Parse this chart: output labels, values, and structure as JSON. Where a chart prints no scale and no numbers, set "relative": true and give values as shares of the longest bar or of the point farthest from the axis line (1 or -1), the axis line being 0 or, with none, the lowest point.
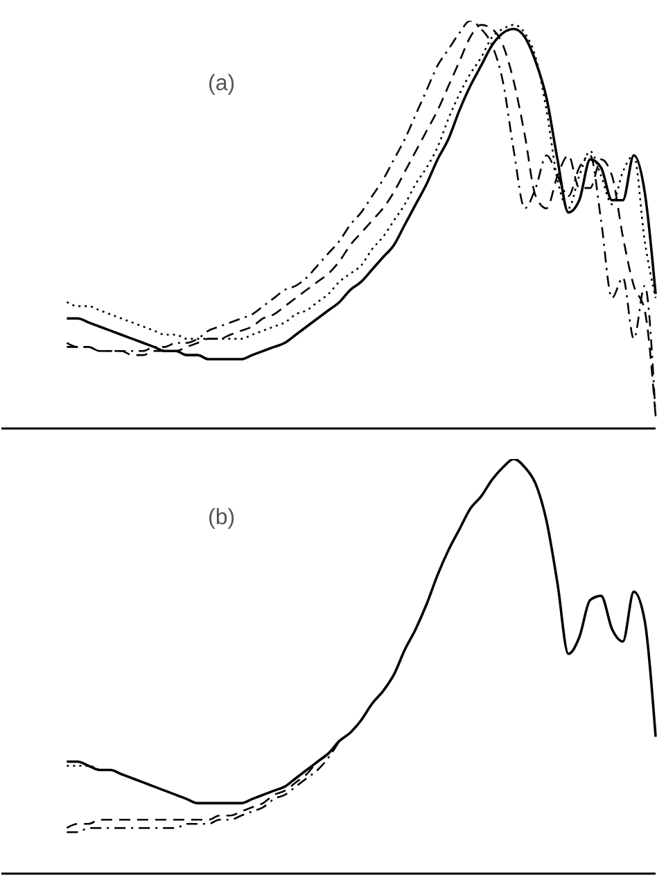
{
  "chart_data": [
    {
      "type": "line",
      "relative": true,
      "annotations": [
        "(a)"
      ],
      "categories": [
        null,
        null,
        null,
        null,
        null,
        null,
        null,
        null,
        null,
        null,
        null,
        null,
        null,
        null,
        null,
        null,
        null,
        null,
        null,
        null,
        null,
        null,
        null,
        null,
        null,
        null,
        null,
        null,
        null,
        null,
        null,
        null,
        null,
        null,
        null,
        null,
        null,
        null,
        null,
        null,
        null,
        null,
        null,
        null,
        null,
        null,
        null,
        null,
        null,
        null,
        null,
        null,
        null,
        null,
        null,
        null,
        null,
        null,
        null,
        null,
        null
      ],
      "series": [
        {
          "color": "#000000",
          "line_style": "solid",
          "values": [
            null,
            null,
            null,
            null,
            null,
            null,
            0.27,
            0.27,
            0.26,
            0.25,
            0.24,
            0.23,
            0.22,
            0.21,
            0.2,
            0.19,
            0.19,
            0.18,
            0.18,
            0.17,
            0.17,
            0.17,
            0.17,
            0.18,
            0.19,
            0.2,
            0.21,
            0.23,
            0.25,
            0.27,
            0.29,
            0.31,
            0.34,
            0.36,
            0.39,
            0.42,
            0.45,
            0.5,
            0.55,
            0.6,
            0.66,
            0.71,
            0.78,
            0.84,
            0.89,
            0.94,
            0.97,
            0.98,
            0.96,
            0.9,
            0.81,
            0.66,
            0.53,
            0.56,
            0.66,
            0.64,
            0.56,
            0.56,
            0.67,
            0.58,
            0.33
          ]
        },
        {
          "color": "#000000",
          "line_style": "dotted",
          "values": [
            null,
            null,
            null,
            null,
            null,
            null,
            0.31,
            0.3,
            0.3,
            0.29,
            0.28,
            0.27,
            0.26,
            0.25,
            0.24,
            0.23,
            0.23,
            0.22,
            0.22,
            0.22,
            0.22,
            0.22,
            0.22,
            0.23,
            0.24,
            0.25,
            0.26,
            0.28,
            0.29,
            0.31,
            0.33,
            0.36,
            0.38,
            0.4,
            0.44,
            0.47,
            0.51,
            0.55,
            0.6,
            0.64,
            0.69,
            0.76,
            0.82,
            0.87,
            0.91,
            0.96,
            0.98,
            0.99,
            0.97,
            0.91,
            0.78,
            0.61,
            0.54,
            0.62,
            0.68,
            0.62,
            0.55,
            0.63,
            0.67,
            0.46,
            0.32
          ]
        },
        {
          "color": "#000000",
          "line_style": "dashed",
          "values": [
            null,
            null,
            null,
            null,
            null,
            null,
            0.21,
            0.2,
            0.2,
            0.19,
            0.19,
            0.19,
            0.18,
            0.18,
            0.19,
            0.19,
            0.19,
            0.2,
            0.21,
            0.22,
            0.22,
            0.23,
            0.24,
            0.25,
            0.27,
            0.28,
            0.3,
            0.32,
            0.34,
            0.36,
            0.38,
            0.41,
            0.45,
            0.48,
            0.51,
            0.54,
            0.58,
            0.63,
            0.68,
            0.73,
            0.78,
            0.84,
            0.9,
            0.96,
            0.99,
            0.98,
            0.94,
            0.85,
            0.72,
            0.57,
            0.54,
            0.62,
            0.67,
            0.59,
            0.59,
            0.66,
            0.62,
            0.47,
            0.35,
            0.29,
            0.03
          ]
        },
        {
          "color": "#000000",
          "line_style": "dashdot",
          "values": [
            null,
            null,
            null,
            null,
            null,
            null,
            0.2,
            0.2,
            0.2,
            0.19,
            0.19,
            0.19,
            0.19,
            0.19,
            0.2,
            0.2,
            0.21,
            0.21,
            0.22,
            0.24,
            0.25,
            0.26,
            0.27,
            0.28,
            0.3,
            0.32,
            0.34,
            0.35,
            0.37,
            0.4,
            0.43,
            0.46,
            0.5,
            0.53,
            0.57,
            0.61,
            0.66,
            0.71,
            0.77,
            0.83,
            0.89,
            0.93,
            0.97,
            1,
            0.98,
            0.94,
            0.85,
            0.68,
            0.54,
            0.59,
            0.67,
            0.62,
            0.57,
            0.64,
            0.67,
            0.51,
            0.32,
            0.37,
            0.22,
            0.35,
            0.03
          ]
        }
      ]
    },
    {
      "type": "line",
      "relative": true,
      "annotations": [
        "(b)"
      ],
      "categories": [
        null,
        null,
        null,
        null,
        null,
        null,
        null,
        null,
        null,
        null,
        null,
        null,
        null,
        null,
        null,
        null,
        null,
        null,
        null,
        null,
        null,
        null,
        null,
        null,
        null,
        null,
        null,
        null,
        null,
        null,
        null,
        null,
        null,
        null,
        null,
        null,
        null,
        null,
        null,
        null,
        null,
        null,
        null,
        null,
        null,
        null,
        null,
        null,
        null,
        null,
        null,
        null,
        null,
        null,
        null,
        null,
        null,
        null,
        null,
        null,
        null
      ],
      "series": [
        {
          "color": "#000000",
          "line_style": "solid",
          "values": [
            null,
            null,
            null,
            null,
            null,
            null,
            0.27,
            0.27,
            0.26,
            0.25,
            0.25,
            0.24,
            0.23,
            0.22,
            0.21,
            0.2,
            0.19,
            0.18,
            0.17,
            0.17,
            0.17,
            0.17,
            0.17,
            0.18,
            0.19,
            0.2,
            0.21,
            0.23,
            0.25,
            0.27,
            0.29,
            0.32,
            0.34,
            0.37,
            0.41,
            0.44,
            0.48,
            0.54,
            0.59,
            0.65,
            0.72,
            0.78,
            0.83,
            0.88,
            0.91,
            0.95,
            0.98,
            1,
            0.98,
            0.94,
            0.85,
            0.7,
            0.53,
            0.57,
            0.66,
            0.67,
            0.59,
            0.56,
            0.68,
            0.61,
            0.33
          ]
        },
        {
          "color": "#000000",
          "line_style": "dotted",
          "values": [
            null,
            null,
            null,
            null,
            null,
            null,
            0.26,
            0.26,
            0.26,
            0.25,
            null,
            null,
            null,
            null,
            null,
            null,
            null,
            null,
            null,
            null,
            null,
            null,
            null,
            null,
            null,
            null,
            null,
            null,
            null,
            null,
            null,
            null,
            null,
            null,
            null,
            null,
            null,
            null,
            null,
            null,
            null,
            null,
            null,
            null,
            null,
            null,
            null,
            null,
            null,
            null,
            null,
            null,
            null,
            null,
            null,
            null,
            null,
            null,
            null,
            null,
            null
          ]
        },
        {
          "color": "#000000",
          "line_style": "dashed",
          "values": [
            null,
            null,
            null,
            null,
            null,
            null,
            0.11,
            0.12,
            0.12,
            0.13,
            0.13,
            0.13,
            0.13,
            0.13,
            0.13,
            0.13,
            0.13,
            0.13,
            0.13,
            0.13,
            0.14,
            0.14,
            0.15,
            0.16,
            0.17,
            0.19,
            0.2,
            0.22,
            0.24,
            0.27,
            0.29,
            null,
            null,
            null,
            null,
            null,
            null,
            null,
            null,
            null,
            null,
            null,
            null,
            null,
            null,
            null,
            null,
            null,
            null,
            null,
            null,
            null,
            null,
            null,
            null,
            null,
            null,
            null,
            null,
            null,
            null
          ]
        },
        {
          "color": "#000000",
          "line_style": "dashdot",
          "values": [
            null,
            null,
            null,
            null,
            null,
            null,
            0.1,
            0.1,
            0.11,
            0.11,
            0.11,
            0.11,
            0.11,
            0.11,
            0.11,
            0.11,
            0.11,
            0.12,
            0.12,
            0.12,
            0.13,
            0.13,
            0.14,
            0.15,
            0.16,
            0.18,
            0.19,
            0.21,
            0.23,
            0.25,
            0.28,
            0.32,
            null,
            null,
            null,
            null,
            null,
            null,
            null,
            null,
            null,
            null,
            null,
            null,
            null,
            null,
            null,
            null,
            null,
            null,
            null,
            null,
            null,
            null,
            null,
            null,
            null,
            null,
            null,
            null,
            null
          ]
        }
      ]
    }
  ]
}
